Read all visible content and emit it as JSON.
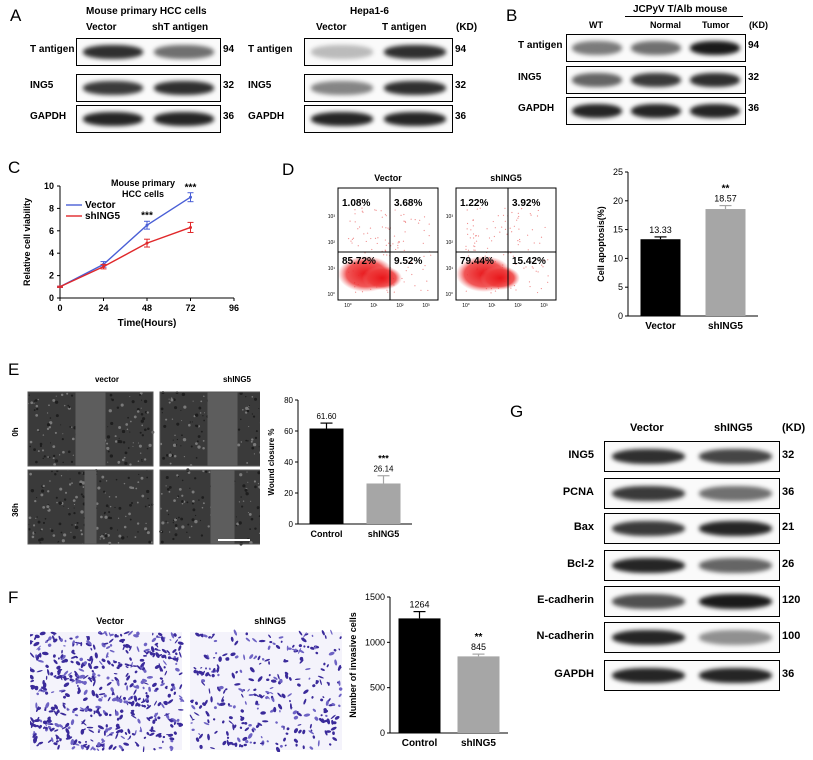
{
  "panels": {
    "A": "A",
    "B": "B",
    "C": "C",
    "D": "D",
    "E": "E",
    "F": "F",
    "G": "G"
  },
  "kd": "(KD)",
  "panelA_left": {
    "title": "Mouse primary HCC cells",
    "lanes": [
      "Vector",
      "shT antigen"
    ],
    "rows": [
      {
        "label": "T antigen",
        "kd": "94",
        "intensity": [
          0.85,
          0.55
        ]
      },
      {
        "label": "ING5",
        "kd": "32",
        "intensity": [
          0.8,
          0.85
        ]
      },
      {
        "label": "GAPDH",
        "kd": "36",
        "intensity": [
          0.9,
          0.9
        ]
      }
    ]
  },
  "panelA_right": {
    "title": "Hepa1-6",
    "lanes": [
      "Vector",
      "T antigen"
    ],
    "rows": [
      {
        "label": "T antigen",
        "kd": "94",
        "intensity": [
          0.2,
          0.85
        ]
      },
      {
        "label": "ING5",
        "kd": "32",
        "intensity": [
          0.45,
          0.85
        ]
      },
      {
        "label": "GAPDH",
        "kd": "36",
        "intensity": [
          0.9,
          0.9
        ]
      }
    ]
  },
  "panelB": {
    "title": "JCPyV T/Alb mouse",
    "lanes": [
      "WT",
      "Normal",
      "Tumor"
    ],
    "rows": [
      {
        "label": "T antigen",
        "kd": "94",
        "intensity": [
          0.5,
          0.55,
          0.95
        ]
      },
      {
        "label": "ING5",
        "kd": "32",
        "intensity": [
          0.6,
          0.8,
          0.85
        ]
      },
      {
        "label": "GAPDH",
        "kd": "36",
        "intensity": [
          0.9,
          0.9,
          0.9
        ]
      }
    ]
  },
  "panelC": {
    "title_line1": "Mouse primary",
    "title_line2": "HCC cells",
    "ylabel": "Relative cell viability",
    "xlabel": "Time(Hours)",
    "sig": [
      "***",
      "***"
    ]
  },
  "panelD": {
    "plots": [
      {
        "title": "Vector",
        "q": [
          "1.08%",
          "3.68%",
          "85.72%",
          "9.52%"
        ]
      },
      {
        "title": "shING5",
        "q": [
          "1.22%",
          "3.92%",
          "79.44%",
          "15.42%"
        ]
      }
    ],
    "sig": "**"
  },
  "panelE": {
    "cols": [
      "vector",
      "shING5"
    ],
    "rows": [
      "0h",
      "36h"
    ],
    "sig": "***"
  },
  "panelF": {
    "cols": [
      "Vector",
      "shING5"
    ],
    "sig": "**"
  },
  "panelG": {
    "lanes": [
      "Vector",
      "shING5"
    ],
    "rows": [
      {
        "label": "ING5",
        "kd": "32",
        "intensity": [
          0.85,
          0.75
        ]
      },
      {
        "label": "PCNA",
        "kd": "36",
        "intensity": [
          0.8,
          0.55
        ]
      },
      {
        "label": "Bax",
        "kd": "21",
        "intensity": [
          0.8,
          0.9
        ]
      },
      {
        "label": "Bcl-2",
        "kd": "26",
        "intensity": [
          0.9,
          0.6
        ]
      },
      {
        "label": "E-cadherin",
        "kd": "120",
        "intensity": [
          0.7,
          0.95
        ]
      },
      {
        "label": "N-cadherin",
        "kd": "100",
        "intensity": [
          0.9,
          0.4
        ]
      },
      {
        "label": "GAPDH",
        "kd": "36",
        "intensity": [
          0.9,
          0.9
        ]
      }
    ]
  },
  "chart_data": [
    {
      "type": "line",
      "x": [
        0,
        24,
        48,
        72
      ],
      "xticks": [
        "0",
        "24",
        "48",
        "72",
        "96"
      ],
      "yticks": [
        "0",
        "2",
        "4",
        "6",
        "8",
        "10"
      ],
      "xlim": [
        0,
        96
      ],
      "ylim": [
        0,
        10
      ],
      "xlabel": "Time(Hours)",
      "ylabel": "Relative cell viability",
      "title": "Mouse primary HCC cells",
      "legend": "top-left",
      "series": [
        {
          "name": "Vector",
          "color": "#4a5fd6",
          "values": [
            1.0,
            3.0,
            6.5,
            9.0
          ],
          "err": [
            0.05,
            0.25,
            0.35,
            0.4
          ]
        },
        {
          "name": "shING5",
          "color": "#e0282a",
          "values": [
            1.0,
            2.8,
            4.9,
            6.3
          ],
          "err": [
            0.05,
            0.2,
            0.35,
            0.45
          ]
        }
      ]
    },
    {
      "type": "bar",
      "categories": [
        "Vector",
        "shING5"
      ],
      "values": [
        13.33,
        18.57
      ],
      "labels": [
        "13.33",
        "18.57"
      ],
      "err": [
        0.4,
        0.6
      ],
      "colors": [
        "#000000",
        "#a6a6a6"
      ],
      "ylabel": "Cell apoptosis(%)",
      "yticks": [
        "0",
        "5",
        "10",
        "15",
        "20",
        "25"
      ],
      "ylim": [
        0,
        25
      ]
    },
    {
      "type": "bar",
      "categories": [
        "Control",
        "shING5"
      ],
      "values": [
        61.6,
        26.14
      ],
      "labels": [
        "61.60",
        "26.14"
      ],
      "err": [
        3.5,
        5.0
      ],
      "colors": [
        "#000000",
        "#a6a6a6"
      ],
      "ylabel": "Wound closure %",
      "yticks": [
        "0",
        "20",
        "40",
        "60",
        "80"
      ],
      "ylim": [
        0,
        80
      ]
    },
    {
      "type": "bar",
      "categories": [
        "Control",
        "shING5"
      ],
      "values": [
        1264,
        845
      ],
      "labels": [
        "1264",
        "845"
      ],
      "err": [
        75,
        25
      ],
      "colors": [
        "#000000",
        "#a6a6a6"
      ],
      "ylabel": "Number of invasive cells",
      "yticks": [
        "0",
        "500",
        "1000",
        "1500"
      ],
      "ylim": [
        0,
        1500
      ]
    }
  ]
}
